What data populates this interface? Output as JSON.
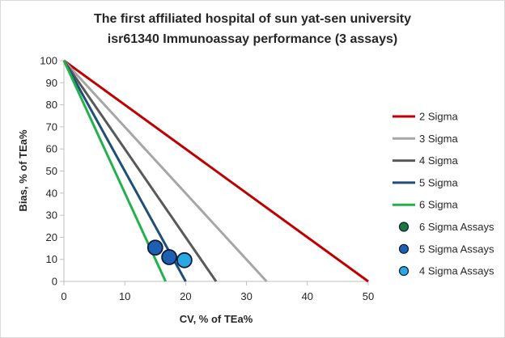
{
  "chart_data": {
    "type": "line",
    "title": "The first affiliated hospital of sun yat-sen university",
    "subtitle": "isr61340 Immunoassay performance (3 assays)",
    "xlabel": "CV, % of TEa%",
    "ylabel": "Bias, % of TEa%",
    "xlim": [
      0,
      50
    ],
    "ylim": [
      0,
      100
    ],
    "xticks": [
      0,
      10,
      20,
      30,
      40,
      50
    ],
    "yticks": [
      0,
      10,
      20,
      30,
      40,
      50,
      60,
      70,
      80,
      90,
      100
    ],
    "grid": false,
    "legend_position": "right",
    "series": [
      {
        "name": "2 Sigma",
        "color": "#c00000",
        "x": [
          0,
          50
        ],
        "y": [
          100,
          0
        ]
      },
      {
        "name": "3 Sigma",
        "color": "#a6a6a6",
        "x": [
          0,
          33.3
        ],
        "y": [
          100,
          0
        ]
      },
      {
        "name": "4 Sigma",
        "color": "#595959",
        "x": [
          0,
          25
        ],
        "y": [
          100,
          0
        ]
      },
      {
        "name": "5 Sigma",
        "color": "#1f4e79",
        "x": [
          0,
          20
        ],
        "y": [
          100,
          0
        ]
      },
      {
        "name": "6 Sigma",
        "color": "#22b14c",
        "x": [
          0,
          16.7
        ],
        "y": [
          100,
          0
        ]
      }
    ],
    "scatter_series": [
      {
        "name": "6 Sigma Assays",
        "color": "#1a7a3a",
        "points": []
      },
      {
        "name": "5 Sigma Assays",
        "color": "#1f5fb0",
        "points": [
          [
            15,
            15.3
          ],
          [
            17.3,
            11
          ]
        ]
      },
      {
        "name": "4 Sigma Assays",
        "color": "#2aa8e0",
        "points": [
          [
            19.8,
            9.6
          ]
        ]
      }
    ]
  }
}
